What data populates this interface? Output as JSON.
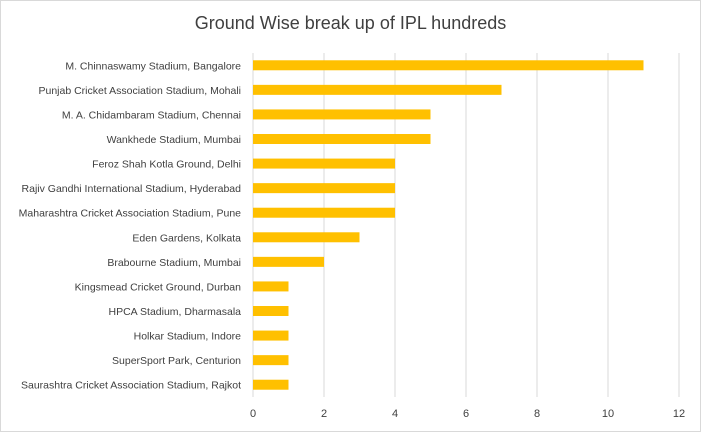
{
  "chart_data": {
    "type": "bar",
    "orientation": "horizontal",
    "title": "Ground Wise break up of IPL hundreds",
    "categories": [
      "M. Chinnaswamy Stadium, Bangalore",
      "Punjab Cricket Association Stadium, Mohali",
      "M. A. Chidambaram Stadium, Chennai",
      "Wankhede Stadium, Mumbai",
      "Feroz Shah Kotla Ground, Delhi",
      "Rajiv Gandhi International Stadium, Hyderabad",
      "Maharashtra Cricket Association Stadium, Pune",
      "Eden Gardens, Kolkata",
      "Brabourne Stadium, Mumbai",
      "Kingsmead Cricket Ground, Durban",
      "HPCA Stadium, Dharmasala",
      "Holkar Stadium, Indore",
      "SuperSport Park, Centurion",
      "Saurashtra Cricket Association Stadium, Rajkot"
    ],
    "values": [
      11,
      7,
      5,
      5,
      4,
      4,
      4,
      3,
      2,
      1,
      1,
      1,
      1,
      1
    ],
    "xlim": [
      0,
      12
    ],
    "xticks": [
      "0",
      "2",
      "4",
      "6",
      "8",
      "10",
      "12"
    ],
    "grid": true,
    "bar_color": "#ffc000",
    "grid_color": "#d9d9d9"
  }
}
